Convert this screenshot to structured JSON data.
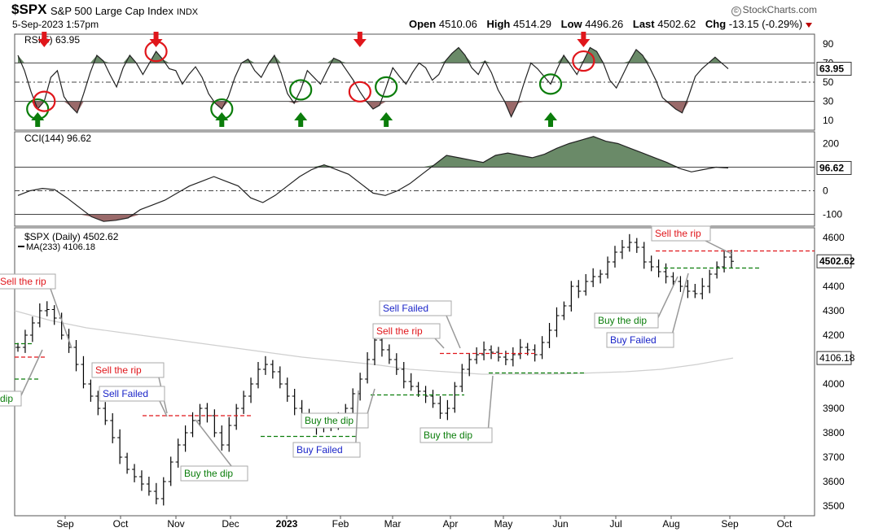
{
  "header": {
    "symbol": "$SPX",
    "name": "S&P 500 Large Cap Index",
    "exchange": "INDX",
    "date": "5-Sep-2023 1:57pm",
    "brand": "StockCharts.com",
    "open_label": "Open",
    "open": "4510.06",
    "high_label": "High",
    "high": "4514.29",
    "low_label": "Low",
    "low": "4496.26",
    "last_label": "Last",
    "last": "4502.62",
    "chg_label": "Chg",
    "chg": "-13.15 (-0.29%)"
  },
  "colors": {
    "accent_red": "#e0161b",
    "accent_green": "#0b7d0b",
    "label_blue": "#1a24c8",
    "fill_green": "#6a8a68",
    "fill_red": "#9a6a6a",
    "ma_gray": "#cfcfcf"
  },
  "chart_data": [
    {
      "type": "line",
      "panel": "rsi",
      "title": "RSI(5) 63.95",
      "last_value": "63.95",
      "yticks": [
        "90",
        "70",
        "50",
        "30",
        "10"
      ],
      "ylim": [
        0,
        100
      ],
      "levels": [
        70,
        50,
        30
      ],
      "series": [
        {
          "values": [
            78,
            62,
            40,
            22,
            30,
            55,
            62,
            35,
            25,
            18,
            38,
            60,
            78,
            72,
            58,
            45,
            65,
            78,
            70,
            58,
            70,
            82,
            74,
            64,
            62,
            48,
            58,
            66,
            55,
            38,
            28,
            22,
            35,
            55,
            70,
            74,
            62,
            55,
            68,
            78,
            60,
            38,
            28,
            42,
            62,
            55,
            48,
            62,
            75,
            72,
            62,
            52,
            40,
            30,
            22,
            26,
            45,
            65,
            56,
            48,
            60,
            70,
            65,
            52,
            58,
            72,
            80,
            86,
            78,
            65,
            58,
            72,
            60,
            42,
            30,
            14,
            28,
            50,
            70,
            64,
            56,
            48,
            64,
            78,
            68,
            58,
            72,
            86,
            82,
            70,
            52,
            44,
            58,
            72,
            84,
            78,
            66,
            52,
            34,
            28,
            22,
            18,
            36,
            56,
            64,
            70,
            76,
            70,
            64
          ]
        }
      ],
      "annotations": [
        {
          "kind": "buy",
          "i": 3
        },
        {
          "kind": "sell",
          "i": 4
        },
        {
          "kind": "sell",
          "i": 21
        },
        {
          "kind": "buy",
          "i": 31
        },
        {
          "kind": "buy",
          "i": 43
        },
        {
          "kind": "sell",
          "i": 52
        },
        {
          "kind": "buy",
          "i": 56
        },
        {
          "kind": "buy",
          "i": 81
        },
        {
          "kind": "sell",
          "i": 86
        }
      ]
    },
    {
      "type": "area",
      "panel": "cci",
      "title": "CCI(144) 96.62",
      "last_value": "96.62",
      "yticks": [
        "200",
        "100",
        "0",
        "-100"
      ],
      "ylim": [
        -150,
        250
      ],
      "levels": [
        100,
        0,
        -100
      ],
      "series": [
        {
          "values": [
            -20,
            0,
            10,
            5,
            -30,
            -70,
            -110,
            -130,
            -125,
            -115,
            -80,
            -60,
            -40,
            -10,
            20,
            40,
            60,
            40,
            20,
            -30,
            -50,
            -20,
            20,
            60,
            90,
            110,
            90,
            70,
            30,
            -10,
            -20,
            0,
            30,
            70,
            110,
            150,
            140,
            130,
            120,
            150,
            160,
            150,
            140,
            155,
            180,
            200,
            215,
            230,
            210,
            200,
            180,
            160,
            140,
            120,
            95,
            80,
            90,
            100,
            96.62
          ]
        }
      ]
    },
    {
      "type": "candlestick",
      "panel": "price",
      "title": "$SPX (Daily) 4502.62",
      "ma_label": "MA(233) 4106.18",
      "last_value": "4502.62",
      "ma_value": "4106.18",
      "yticks": [
        "4600",
        "4500",
        "4400",
        "4300",
        "4200",
        "4100",
        "4000",
        "3900",
        "3800",
        "3700",
        "3600",
        "3500"
      ],
      "ylim": [
        3460,
        4640
      ],
      "xticks": [
        "Sep",
        "Oct",
        "Nov",
        "Dec",
        "2023",
        "Feb",
        "Mar",
        "Apr",
        "May",
        "Jun",
        "Jul",
        "Aug",
        "Sep",
        "Oct"
      ],
      "closes": [
        4150,
        4200,
        4250,
        4300,
        4305,
        4270,
        4200,
        4150,
        4080,
        4000,
        3950,
        3900,
        3850,
        3780,
        3700,
        3650,
        3620,
        3590,
        3560,
        3530,
        3600,
        3680,
        3750,
        3800,
        3850,
        3900,
        3870,
        3800,
        3750,
        3830,
        3900,
        3950,
        4000,
        4060,
        4080,
        4050,
        4000,
        3950,
        3900,
        3880,
        3850,
        3820,
        3830,
        3840,
        3850,
        3900,
        3960,
        4020,
        4100,
        4180,
        4140,
        4100,
        4060,
        4010,
        3990,
        3970,
        3950,
        3920,
        3880,
        3900,
        3990,
        4060,
        4100,
        4120,
        4140,
        4130,
        4110,
        4100,
        4120,
        4150,
        4140,
        4120,
        4170,
        4220,
        4280,
        4320,
        4400,
        4380,
        4420,
        4440,
        4450,
        4500,
        4540,
        4560,
        4580,
        4560,
        4500,
        4480,
        4460,
        4440,
        4420,
        4400,
        4380,
        4370,
        4400,
        4450,
        4480,
        4520,
        4502.62
      ],
      "ma": [
        4300,
        4260,
        4230,
        4210,
        4190,
        4170,
        4150,
        4130,
        4110,
        4095,
        4080,
        4060,
        4050,
        4040,
        4040,
        4040,
        4045,
        4050,
        4060,
        4080,
        4106.18
      ],
      "annotations": [
        {
          "text": "Sell the rip",
          "color": "red"
        },
        {
          "text": "dip",
          "color": "green"
        },
        {
          "text": "Sell the rip",
          "color": "red"
        },
        {
          "text": "Sell Failed",
          "color": "blue"
        },
        {
          "text": "Buy the dip",
          "color": "green"
        },
        {
          "text": "Buy the dip",
          "color": "green"
        },
        {
          "text": "Buy Failed",
          "color": "blue"
        },
        {
          "text": "Sell Failed",
          "color": "blue"
        },
        {
          "text": "Sell the rip",
          "color": "red"
        },
        {
          "text": "Buy the dip",
          "color": "green"
        },
        {
          "text": "Sell the rip",
          "color": "red"
        },
        {
          "text": "Buy the dip",
          "color": "green"
        },
        {
          "text": "Buy Failed",
          "color": "blue"
        }
      ]
    }
  ]
}
